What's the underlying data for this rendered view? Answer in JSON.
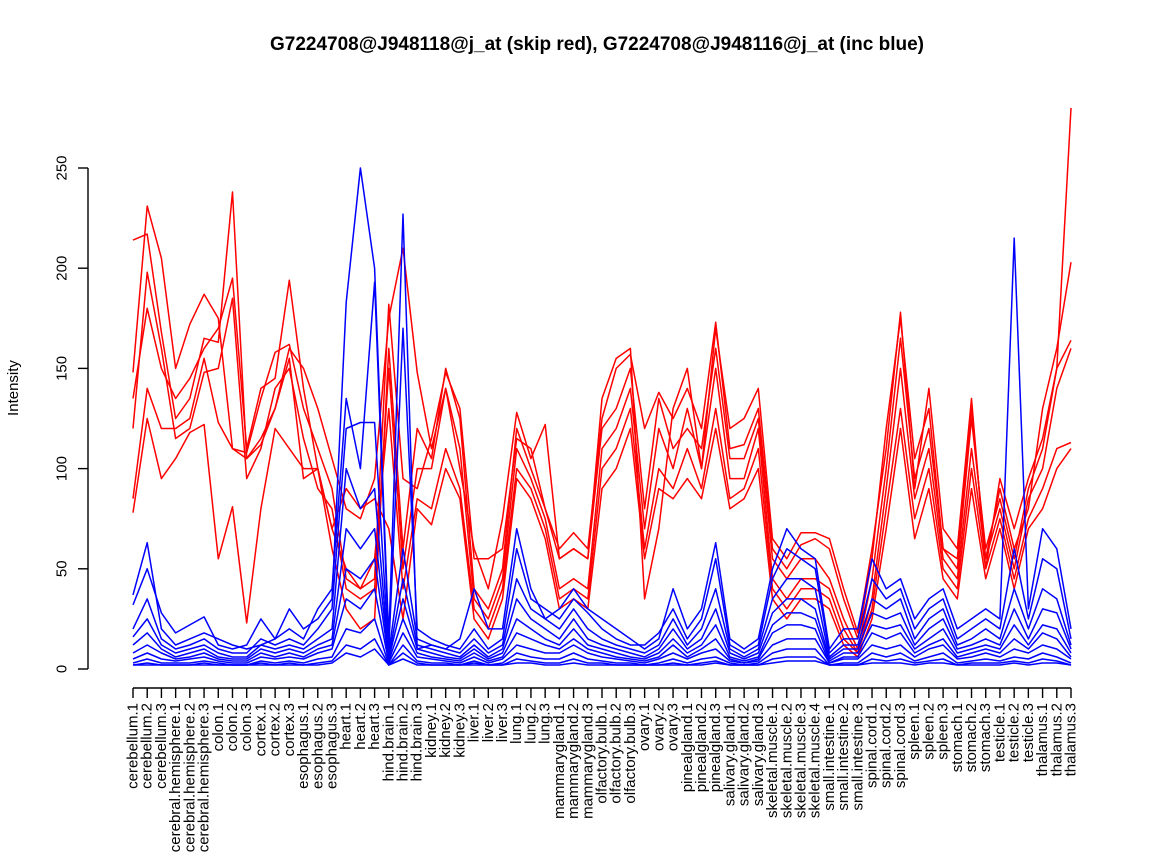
{
  "chart_data": {
    "type": "line",
    "title": "G7224708@J948118@j_at (skip red), G7224708@J948116@j_at (inc blue)",
    "xlabel": "",
    "ylabel": "Intensity",
    "ylim": [
      0,
      250
    ],
    "yticks": [
      0,
      50,
      100,
      150,
      200,
      250
    ],
    "grid": false,
    "legend": "none",
    "categories": [
      "cerebellum.1",
      "cerebellum.2",
      "cerebellum.3",
      "cerebral.hemisphere.1",
      "cerebral.hemisphere.2",
      "cerebral.hemisphere.3",
      "colon.1",
      "colon.2",
      "colon.3",
      "cortex.1",
      "cortex.2",
      "cortex.3",
      "esophagus.1",
      "esophagus.2",
      "esophagus.3",
      "heart.1",
      "heart.2",
      "heart.3",
      "hind.brain.1",
      "hind.brain.2",
      "hind.brain.3",
      "kidney.1",
      "kidney.2",
      "kidney.3",
      "liver.1",
      "liver.2",
      "liver.3",
      "lung.1",
      "lung.2",
      "lung.3",
      "mammarygland.1",
      "mammarygland.2",
      "mammarygland.3",
      "olfactory.bulb.1",
      "olfactory.bulb.2",
      "olfactory.bulb.3",
      "ovary.1",
      "ovary.2",
      "ovary.3",
      "pinealgland.1",
      "pinealgland.2",
      "pinealgland.3",
      "salivary.gland.1",
      "salivary.gland.2",
      "salivary.gland.3",
      "skeletal.muscle.1",
      "skeletal.muscle.2",
      "skeletal.muscle.3",
      "skeletal.muscle.4",
      "small.intestine.1",
      "small.intestine.2",
      "small.intestine.3",
      "spinal.cord.1",
      "spinal.cord.2",
      "spinal.cord.3",
      "spleen.1",
      "spleen.2",
      "spleen.3",
      "stomach.1",
      "stomach.2",
      "stomach.3",
      "testicle.1",
      "testicle.2",
      "testicle.3",
      "thalamus.1",
      "thalamus.2",
      "thalamus.3"
    ],
    "colors": {
      "skip": "#ff0000",
      "inc": "#0000ff"
    },
    "series": [
      {
        "group": "skip",
        "values": [
          214,
          217,
          168,
          125,
          135,
          165,
          163,
          238,
          105,
          112,
          130,
          160,
          150,
          130,
          105,
          80,
          75,
          95,
          175,
          210,
          148,
          110,
          140,
          100,
          60,
          40,
          75,
          128,
          105,
          122,
          55,
          60,
          55,
          135,
          155,
          160,
          35,
          70,
          130,
          150,
          100,
          170,
          120,
          125,
          140,
          65,
          55,
          68,
          68,
          65,
          40,
          18,
          60,
          110,
          178,
          90,
          140,
          70,
          60,
          135,
          50,
          95,
          70,
          95,
          115,
          150,
          280
        ]
      },
      {
        "group": "skip",
        "values": [
          148,
          231,
          205,
          150,
          172,
          187,
          175,
          110,
          108,
          135,
          158,
          162,
          130,
          110,
          90,
          45,
          40,
          45,
          182,
          95,
          90,
          115,
          148,
          130,
          55,
          55,
          60,
          115,
          110,
          80,
          60,
          68,
          60,
          125,
          150,
          157,
          120,
          138,
          125,
          140,
          120,
          173,
          110,
          112,
          130,
          60,
          50,
          62,
          65,
          60,
          35,
          15,
          55,
          120,
          175,
          105,
          130,
          60,
          55,
          130,
          55,
          90,
          60,
          80,
          130,
          160,
          203
        ]
      },
      {
        "group": "skip",
        "values": [
          135,
          180,
          150,
          135,
          145,
          160,
          170,
          195,
          110,
          140,
          145,
          194,
          140,
          100,
          60,
          30,
          20,
          25,
          160,
          60,
          120,
          105,
          150,
          125,
          40,
          30,
          50,
          120,
          100,
          80,
          55,
          60,
          55,
          120,
          130,
          150,
          80,
          135,
          110,
          120,
          110,
          160,
          105,
          105,
          125,
          55,
          45,
          55,
          55,
          45,
          25,
          10,
          45,
          100,
          165,
          95,
          120,
          60,
          50,
          125,
          60,
          85,
          55,
          90,
          110,
          150,
          164
        ]
      },
      {
        "group": "skip",
        "values": [
          120,
          198,
          160,
          115,
          120,
          148,
          150,
          185,
          95,
          110,
          140,
          150,
          115,
          90,
          80,
          40,
          35,
          40,
          150,
          50,
          100,
          100,
          140,
          110,
          35,
          25,
          45,
          110,
          95,
          75,
          40,
          45,
          40,
          110,
          120,
          140,
          70,
          120,
          100,
          130,
          100,
          150,
          95,
          95,
          120,
          45,
          35,
          45,
          45,
          40,
          20,
          8,
          35,
          90,
          150,
          85,
          110,
          55,
          45,
          110,
          55,
          80,
          50,
          85,
          100,
          140,
          160
        ]
      },
      {
        "group": "skip",
        "values": [
          85,
          140,
          120,
          120,
          125,
          155,
          123,
          110,
          105,
          115,
          130,
          155,
          95,
          100,
          70,
          50,
          40,
          55,
          130,
          40,
          85,
          80,
          110,
          90,
          30,
          20,
          40,
          100,
          90,
          70,
          35,
          40,
          35,
          100,
          110,
          130,
          60,
          100,
          90,
          110,
          90,
          130,
          85,
          90,
          110,
          40,
          30,
          40,
          40,
          35,
          15,
          8,
          30,
          80,
          130,
          75,
          100,
          50,
          40,
          100,
          50,
          75,
          45,
          75,
          90,
          110,
          113
        ]
      },
      {
        "group": "skip",
        "values": [
          78,
          125,
          95,
          105,
          118,
          122,
          55,
          81,
          23,
          80,
          120,
          110,
          100,
          100,
          70,
          90,
          80,
          85,
          70,
          25,
          80,
          72,
          100,
          85,
          25,
          15,
          35,
          95,
          85,
          65,
          30,
          35,
          30,
          90,
          100,
          120,
          55,
          90,
          85,
          95,
          85,
          120,
          80,
          85,
          100,
          35,
          25,
          35,
          35,
          30,
          12,
          6,
          25,
          70,
          120,
          65,
          90,
          45,
          35,
          90,
          45,
          70,
          40,
          70,
          80,
          100,
          110
        ]
      },
      {
        "group": "inc",
        "values": [
          37,
          63,
          20,
          12,
          15,
          18,
          15,
          12,
          10,
          12,
          15,
          30,
          20,
          25,
          35,
          183,
          250,
          200,
          15,
          227,
          10,
          12,
          10,
          15,
          40,
          20,
          20,
          70,
          40,
          25,
          30,
          40,
          30,
          25,
          20,
          15,
          10,
          15,
          40,
          20,
          30,
          63,
          15,
          10,
          15,
          50,
          70,
          60,
          55,
          10,
          20,
          20,
          55,
          40,
          45,
          25,
          35,
          40,
          20,
          25,
          30,
          25,
          215,
          30,
          70,
          60,
          20
        ]
      },
      {
        "group": "inc",
        "values": [
          32,
          50,
          28,
          18,
          22,
          26,
          12,
          10,
          12,
          25,
          15,
          20,
          15,
          30,
          40,
          135,
          100,
          193,
          10,
          170,
          20,
          15,
          12,
          10,
          20,
          10,
          15,
          60,
          35,
          30,
          25,
          35,
          28,
          20,
          15,
          12,
          12,
          18,
          30,
          15,
          25,
          55,
          12,
          8,
          12,
          45,
          60,
          55,
          50,
          8,
          15,
          15,
          45,
          35,
          40,
          20,
          30,
          35,
          15,
          20,
          25,
          20,
          60,
          25,
          55,
          50,
          15
        ]
      },
      {
        "group": "inc",
        "values": [
          20,
          35,
          15,
          10,
          12,
          15,
          10,
          8,
          8,
          15,
          12,
          15,
          12,
          20,
          30,
          120,
          123,
          123,
          8,
          60,
          15,
          12,
          10,
          8,
          15,
          8,
          12,
          45,
          30,
          25,
          20,
          30,
          20,
          15,
          12,
          10,
          8,
          12,
          25,
          12,
          20,
          40,
          10,
          6,
          10,
          35,
          45,
          45,
          40,
          6,
          12,
          12,
          35,
          30,
          35,
          15,
          25,
          30,
          12,
          15,
          20,
          15,
          40,
          20,
          40,
          35,
          12
        ]
      },
      {
        "group": "inc",
        "values": [
          16,
          25,
          12,
          8,
          10,
          12,
          8,
          6,
          6,
          12,
          10,
          12,
          10,
          15,
          20,
          100,
          80,
          90,
          6,
          45,
          12,
          10,
          8,
          6,
          12,
          6,
          10,
          35,
          25,
          20,
          15,
          25,
          15,
          12,
          10,
          8,
          6,
          10,
          20,
          10,
          15,
          30,
          8,
          5,
          8,
          28,
          35,
          35,
          30,
          5,
          10,
          10,
          28,
          25,
          28,
          12,
          20,
          25,
          10,
          12,
          15,
          12,
          30,
          15,
          30,
          28,
          10
        ]
      },
      {
        "group": "inc",
        "values": [
          12,
          18,
          10,
          6,
          8,
          10,
          6,
          5,
          5,
          10,
          8,
          10,
          8,
          12,
          15,
          70,
          60,
          70,
          5,
          35,
          10,
          8,
          6,
          5,
          10,
          5,
          8,
          25,
          20,
          15,
          12,
          20,
          12,
          10,
          8,
          6,
          5,
          8,
          15,
          8,
          12,
          22,
          6,
          4,
          6,
          22,
          28,
          28,
          25,
          4,
          8,
          8,
          22,
          20,
          22,
          10,
          15,
          20,
          8,
          10,
          12,
          10,
          22,
          12,
          22,
          20,
          8
        ]
      },
      {
        "group": "inc",
        "values": [
          8,
          12,
          8,
          5,
          6,
          8,
          5,
          4,
          4,
          8,
          6,
          8,
          6,
          10,
          12,
          50,
          45,
          55,
          4,
          25,
          8,
          6,
          5,
          4,
          8,
          4,
          6,
          18,
          15,
          12,
          10,
          15,
          10,
          8,
          6,
          5,
          4,
          6,
          12,
          6,
          10,
          15,
          5,
          3,
          5,
          18,
          22,
          22,
          20,
          3,
          6,
          6,
          18,
          15,
          18,
          8,
          12,
          15,
          6,
          8,
          10,
          8,
          15,
          10,
          18,
          15,
          6
        ]
      },
      {
        "group": "inc",
        "values": [
          5,
          8,
          5,
          4,
          5,
          6,
          4,
          3,
          3,
          6,
          5,
          6,
          5,
          8,
          10,
          35,
          30,
          40,
          3,
          18,
          6,
          5,
          4,
          3,
          6,
          3,
          5,
          12,
          10,
          8,
          8,
          12,
          8,
          6,
          5,
          4,
          3,
          5,
          8,
          5,
          8,
          10,
          4,
          3,
          4,
          12,
          15,
          15,
          15,
          3,
          5,
          5,
          12,
          10,
          12,
          6,
          10,
          12,
          5,
          6,
          8,
          6,
          10,
          8,
          12,
          10,
          5
        ]
      },
      {
        "group": "inc",
        "values": [
          3,
          5,
          3,
          3,
          3,
          4,
          3,
          2,
          2,
          4,
          3,
          4,
          3,
          5,
          6,
          20,
          18,
          25,
          2,
          12,
          4,
          3,
          3,
          2,
          4,
          2,
          3,
          8,
          6,
          5,
          5,
          8,
          5,
          4,
          3,
          3,
          2,
          3,
          5,
          3,
          5,
          6,
          3,
          2,
          3,
          8,
          10,
          10,
          10,
          2,
          3,
          3,
          8,
          6,
          8,
          4,
          6,
          8,
          3,
          4,
          5,
          4,
          6,
          5,
          8,
          6,
          3
        ]
      },
      {
        "group": "inc",
        "values": [
          2,
          3,
          2,
          2,
          2,
          3,
          2,
          2,
          2,
          3,
          2,
          3,
          2,
          3,
          4,
          12,
          10,
          15,
          2,
          8,
          3,
          2,
          2,
          2,
          3,
          2,
          2,
          5,
          4,
          3,
          3,
          5,
          3,
          3,
          2,
          2,
          2,
          2,
          3,
          2,
          3,
          4,
          2,
          2,
          2,
          5,
          6,
          6,
          6,
          2,
          2,
          2,
          5,
          4,
          5,
          3,
          4,
          5,
          2,
          3,
          3,
          3,
          4,
          3,
          5,
          4,
          2
        ]
      },
      {
        "group": "inc",
        "values": [
          2,
          2,
          2,
          2,
          2,
          2,
          2,
          2,
          2,
          2,
          2,
          2,
          2,
          2,
          3,
          8,
          6,
          10,
          2,
          5,
          2,
          2,
          2,
          2,
          2,
          2,
          2,
          3,
          3,
          2,
          2,
          3,
          2,
          2,
          2,
          2,
          2,
          2,
          2,
          2,
          2,
          3,
          2,
          2,
          2,
          3,
          4,
          4,
          4,
          2,
          2,
          2,
          3,
          3,
          3,
          2,
          3,
          3,
          2,
          2,
          2,
          2,
          3,
          2,
          3,
          3,
          2
        ]
      }
    ]
  }
}
